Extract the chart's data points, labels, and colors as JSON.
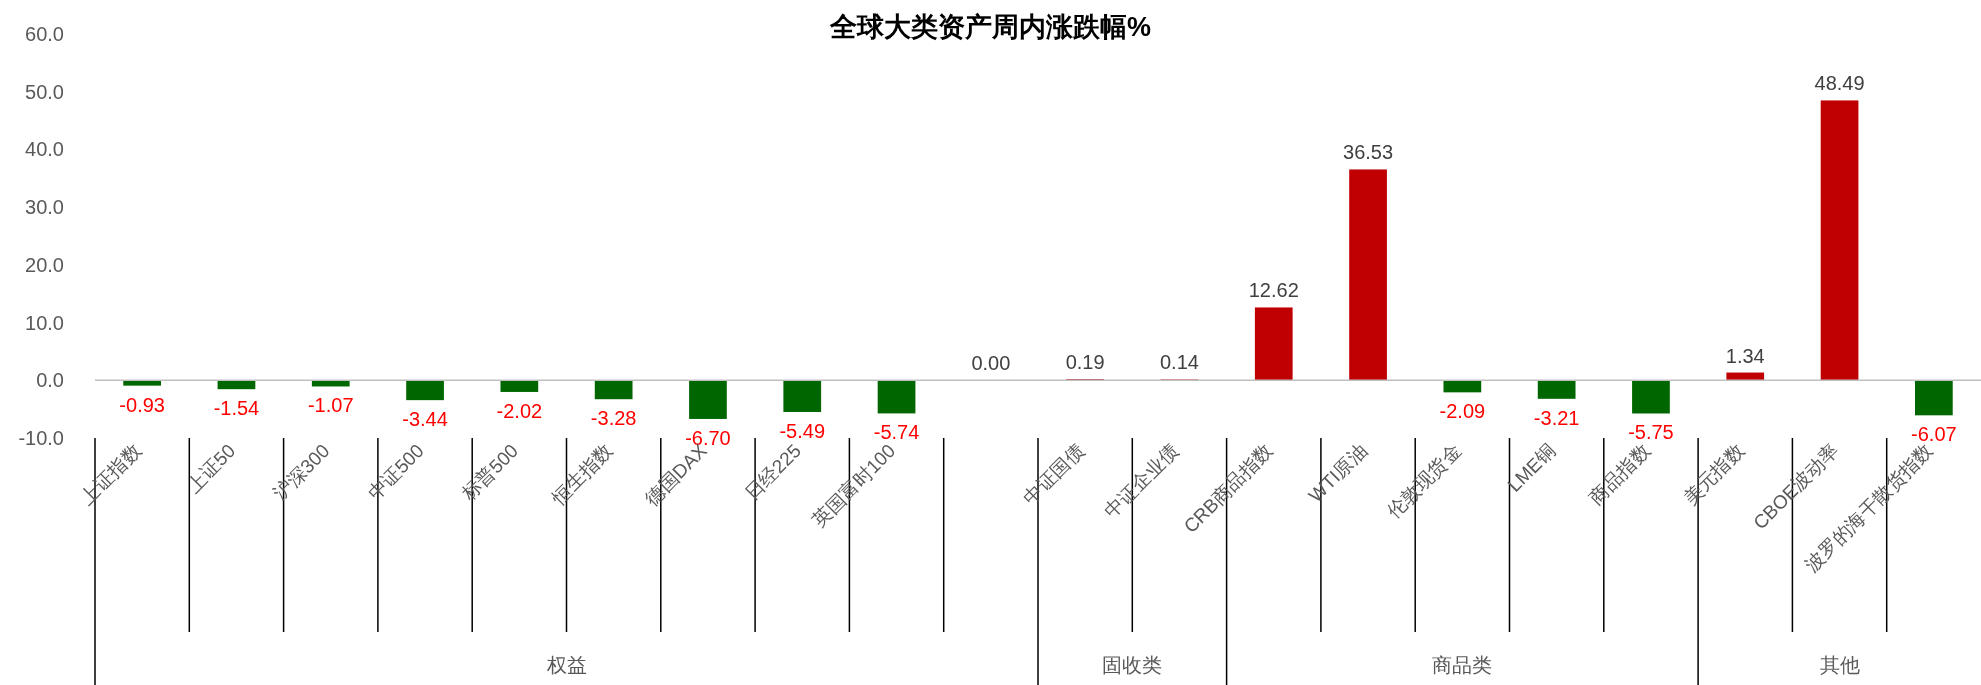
{
  "chart_data": {
    "type": "bar",
    "title": "全球大类资产周内涨跌幅%",
    "categories": [
      "上证指数",
      "上证50",
      "沪深300",
      "中证500",
      "标普500",
      "恒生指数",
      "德国DAX",
      "日经225",
      "英国富时100",
      null,
      "中证国债",
      "中证企业债",
      "CRB商品指数",
      "WTI原油",
      "伦敦现货金",
      "LME铜",
      "商品指数",
      "美元指数",
      "CBOE波动率",
      "波罗的海干散货指数"
    ],
    "values": [
      -0.93,
      -1.54,
      -1.07,
      -3.44,
      -2.02,
      -3.28,
      -6.7,
      -5.49,
      -5.74,
      0.0,
      0.19,
      0.14,
      12.62,
      36.53,
      -2.09,
      -3.21,
      -5.75,
      1.34,
      48.49,
      -6.07
    ],
    "colors": [
      "#006600",
      "#006600",
      "#006600",
      "#006600",
      "#006600",
      "#006600",
      "#006600",
      "#006600",
      "#006600",
      "#c00000",
      "#c00000",
      "#c00000",
      "#c00000",
      "#c00000",
      "#006600",
      "#006600",
      "#006600",
      "#c00000",
      "#c00000",
      "#006600"
    ],
    "value_labels": [
      "-0.93",
      "-1.54",
      "-1.07",
      "-3.44",
      "-2.02",
      "-3.28",
      "-6.70",
      "-5.49",
      "-5.74",
      "0.00",
      "0.19",
      "0.14",
      "12.62",
      "36.53",
      "-2.09",
      "-3.21",
      "-5.75",
      "1.34",
      "48.49",
      "-6.07"
    ],
    "ylim": [
      -10,
      60
    ],
    "yticks": [
      {
        "value": -10,
        "label": "-10.0"
      },
      {
        "value": 0,
        "label": "0.0"
      },
      {
        "value": 10,
        "label": "10.0"
      },
      {
        "value": 20,
        "label": "20.0"
      },
      {
        "value": 30,
        "label": "30.0"
      },
      {
        "value": 40,
        "label": "40.0"
      },
      {
        "value": 50,
        "label": "50.0"
      },
      {
        "value": 60,
        "label": "60.0"
      }
    ],
    "annotations": [
      "权益",
      "固收类",
      "商品类",
      "其他"
    ]
  }
}
